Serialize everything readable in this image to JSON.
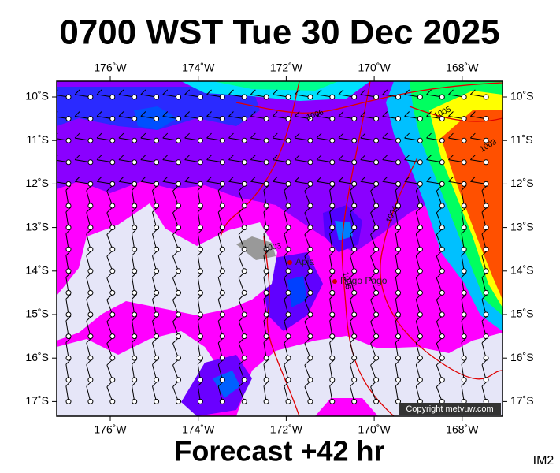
{
  "title": "0700 WST Tue 30 Dec 2025",
  "footer": "Forecast +42 hr",
  "corner_code": "IM2",
  "copyright": "Copyright metvuw.com",
  "lon_labels": [
    "176˚W",
    "174˚W",
    "172˚W",
    "170˚W",
    "168˚W"
  ],
  "lat_labels": [
    "10˚S",
    "11˚S",
    "12˚S",
    "13˚S",
    "14˚S",
    "15˚S",
    "16˚S",
    "17˚S"
  ],
  "places": [
    "Apia",
    "Pago Pago"
  ],
  "isobar_labels": [
    "1006",
    "1005",
    "1003",
    "1004",
    "1003",
    "1005"
  ]
}
